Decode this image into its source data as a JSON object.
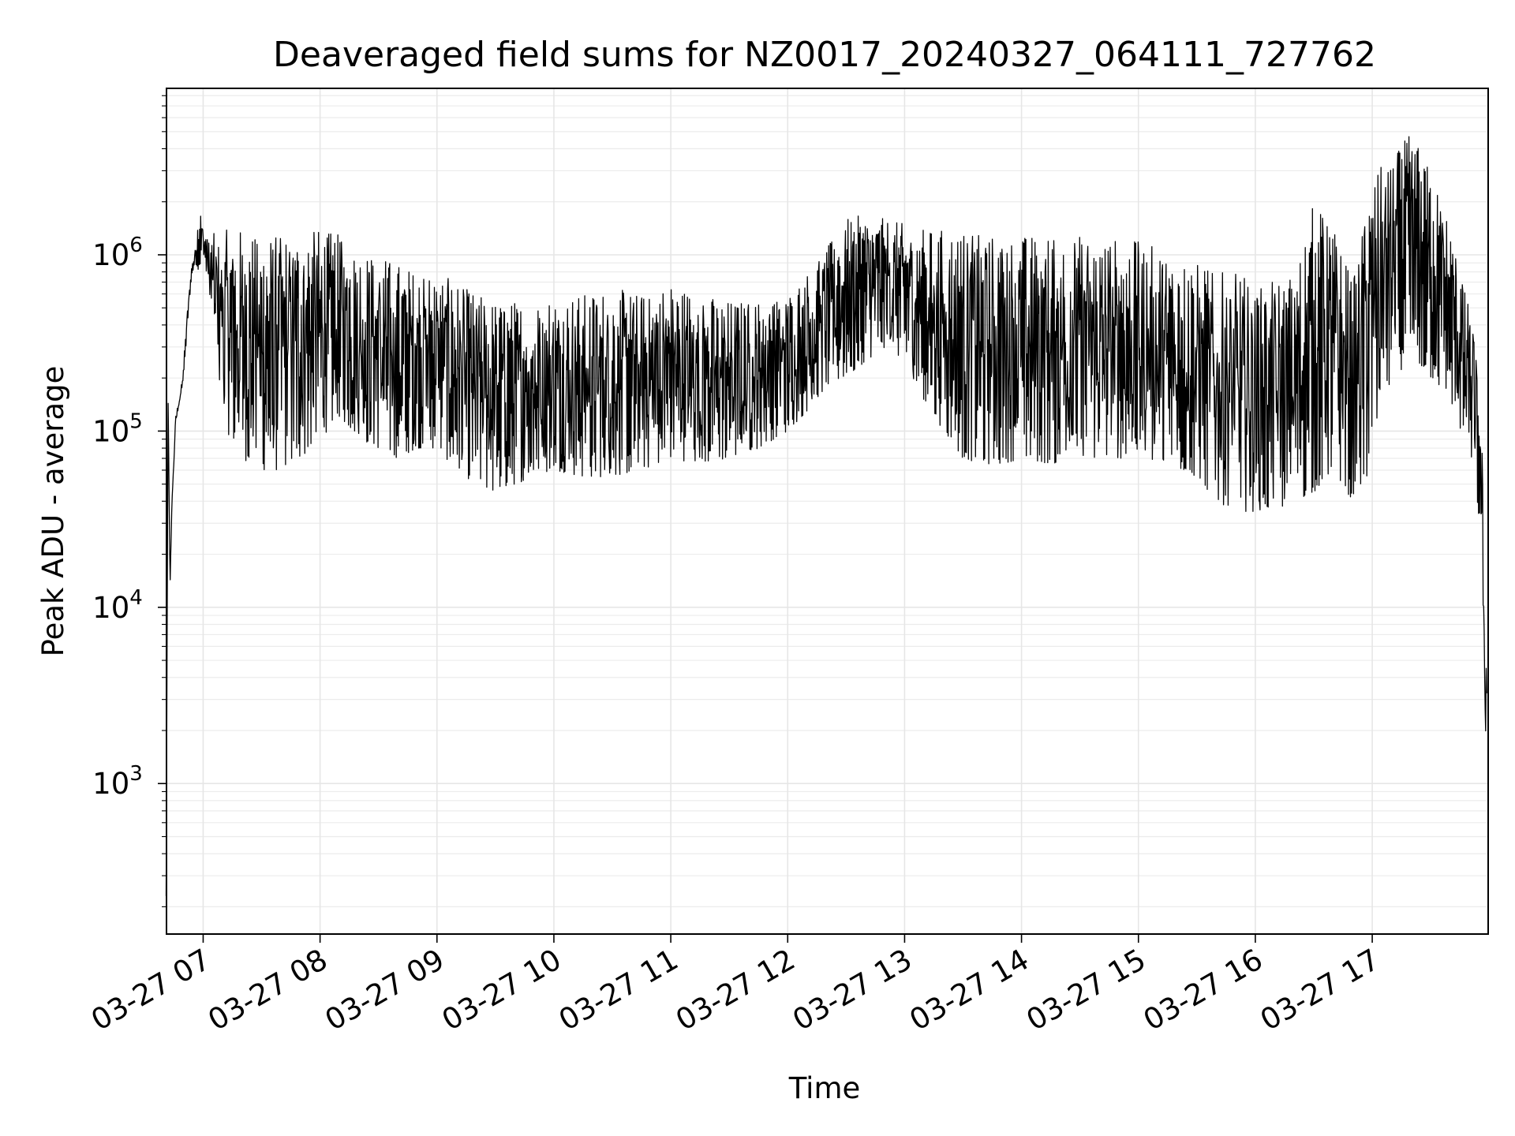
{
  "chart_data": {
    "type": "line",
    "title": "Deaveraged field sums for NZ0017_20240327_064111_727762",
    "xlabel": "Time",
    "ylabel": "Peak ADU - average",
    "yscale": "log",
    "ylim": [
      140,
      8800000
    ],
    "xlim": [
      "2024-03-27 06:41:11",
      "2024-03-27 17:59:30"
    ],
    "grid": true,
    "x_tick_labels": [
      "03-27 07",
      "03-27 08",
      "03-27 09",
      "03-27 10",
      "03-27 11",
      "03-27 12",
      "03-27 13",
      "03-27 14",
      "03-27 15",
      "03-27 16",
      "03-27 17"
    ],
    "y_tick_labels": [
      {
        "base": "10",
        "exp": "3"
      },
      {
        "base": "10",
        "exp": "4"
      },
      {
        "base": "10",
        "exp": "5"
      },
      {
        "base": "10",
        "exp": "6"
      }
    ],
    "series": [
      {
        "color": "#000000",
        "x": [
          "2024-03-27 06:41",
          "2024-03-27 06:42",
          "2024-03-27 06:43",
          "2024-03-27 06:44",
          "2024-03-27 06:46",
          "2024-03-27 06:48",
          "2024-03-27 06:50",
          "2024-03-27 06:52",
          "2024-03-27 06:54",
          "2024-03-27 06:56",
          "2024-03-27 06:58",
          "2024-03-27 07:00",
          "2024-03-27 07:03",
          "2024-03-27 07:05",
          "2024-03-27 07:07",
          "2024-03-27 07:12",
          "2024-03-27 07:20",
          "2024-03-27 07:30",
          "2024-03-27 07:40",
          "2024-03-27 07:50",
          "2024-03-27 08:00",
          "2024-03-27 08:10",
          "2024-03-27 08:20",
          "2024-03-27 08:30",
          "2024-03-27 08:40",
          "2024-03-27 08:50",
          "2024-03-27 09:00",
          "2024-03-27 09:10",
          "2024-03-27 09:20",
          "2024-03-27 09:30",
          "2024-03-27 09:40",
          "2024-03-27 09:50",
          "2024-03-27 10:00",
          "2024-03-27 10:15",
          "2024-03-27 10:30",
          "2024-03-27 10:45",
          "2024-03-27 11:00",
          "2024-03-27 11:15",
          "2024-03-27 11:30",
          "2024-03-27 11:45",
          "2024-03-27 12:00",
          "2024-03-27 12:10",
          "2024-03-27 12:20",
          "2024-03-27 12:30",
          "2024-03-27 12:40",
          "2024-03-27 12:50",
          "2024-03-27 13:00",
          "2024-03-27 13:10",
          "2024-03-27 13:20",
          "2024-03-27 13:30",
          "2024-03-27 13:40",
          "2024-03-27 13:50",
          "2024-03-27 14:00",
          "2024-03-27 14:15",
          "2024-03-27 14:30",
          "2024-03-27 14:45",
          "2024-03-27 15:00",
          "2024-03-27 15:10",
          "2024-03-27 15:20",
          "2024-03-27 15:30",
          "2024-03-27 15:40",
          "2024-03-27 15:50",
          "2024-03-27 16:00",
          "2024-03-27 16:10",
          "2024-03-27 16:20",
          "2024-03-27 16:30",
          "2024-03-27 16:40",
          "2024-03-27 16:50",
          "2024-03-27 17:00",
          "2024-03-27 17:10",
          "2024-03-27 17:20",
          "2024-03-27 17:30",
          "2024-03-27 17:40",
          "2024-03-27 17:48",
          "2024-03-27 17:52",
          "2024-03-27 17:55",
          "2024-03-27 17:57",
          "2024-03-27 17:58",
          "2024-03-27 17:59"
        ],
        "lo": [
          230,
          160000,
          13000,
          40000,
          110000,
          150000,
          200000,
          400000,
          750000,
          900000,
          800000,
          1000000,
          600000,
          400000,
          200000,
          100000,
          70000,
          60000,
          60000,
          70000,
          90000,
          120000,
          90000,
          80000,
          70000,
          80000,
          80000,
          60000,
          50000,
          45000,
          50000,
          55000,
          60000,
          55000,
          55000,
          60000,
          70000,
          65000,
          70000,
          80000,
          100000,
          130000,
          180000,
          200000,
          250000,
          300000,
          250000,
          150000,
          100000,
          70000,
          65000,
          65000,
          70000,
          65000,
          70000,
          70000,
          70000,
          65000,
          60000,
          55000,
          40000,
          35000,
          35000,
          35000,
          40000,
          45000,
          60000,
          40000,
          60000,
          200000,
          250000,
          200000,
          150000,
          80000,
          60000,
          30000,
          4000,
          1800,
          2500
        ],
        "hi": [
          230,
          160000,
          13000,
          40000,
          130000,
          150000,
          250000,
          500000,
          850000,
          1100000,
          2000000,
          1500000,
          1200000,
          1300000,
          1400000,
          1400000,
          1400000,
          1300000,
          1300000,
          1400000,
          1400000,
          1300000,
          1100000,
          1000000,
          900000,
          800000,
          800000,
          700000,
          600000,
          550000,
          550000,
          550000,
          600000,
          600000,
          650000,
          600000,
          700000,
          600000,
          550000,
          550000,
          600000,
          800000,
          1100000,
          1600000,
          1700000,
          1600000,
          1500000,
          1400000,
          1400000,
          1400000,
          1300000,
          1300000,
          1300000,
          1300000,
          1300000,
          1250000,
          1200000,
          1100000,
          1000000,
          900000,
          800000,
          800000,
          700000,
          700000,
          800000,
          2000000,
          1500000,
          700000,
          3000000,
          3500000,
          5000000,
          3000000,
          1500000,
          600000,
          400000,
          150000,
          60000,
          7000,
          4000
        ]
      }
    ]
  }
}
